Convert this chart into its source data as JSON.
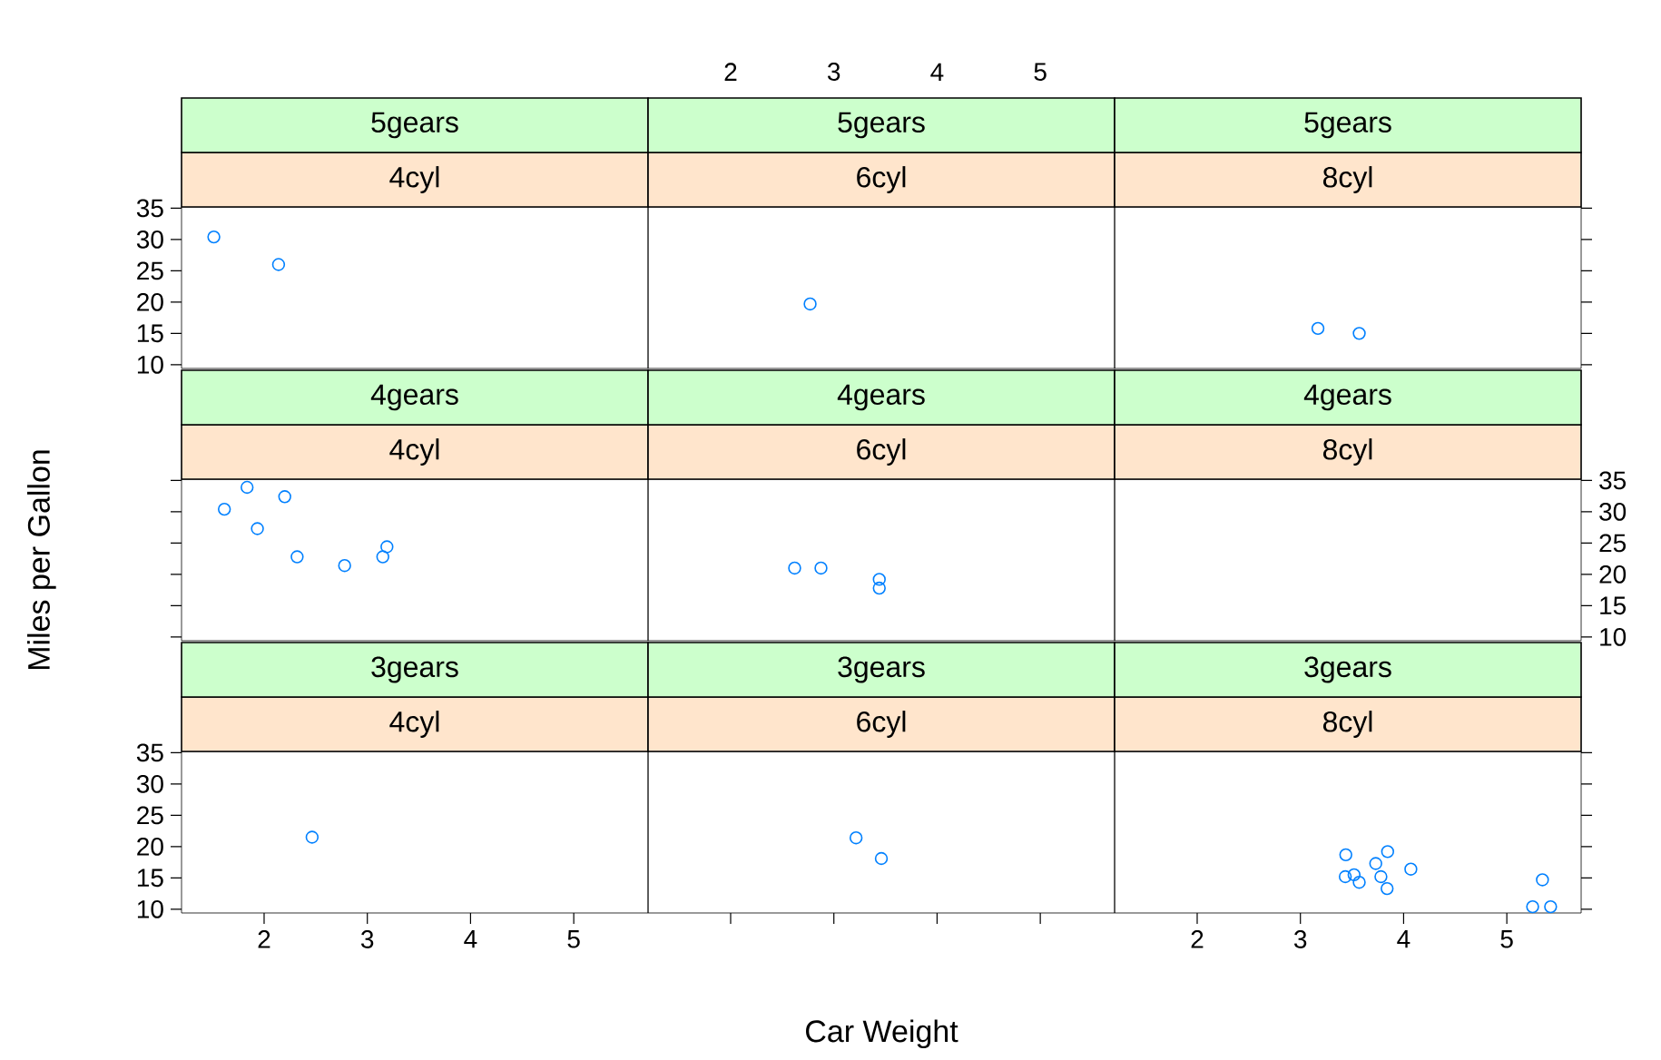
{
  "chart_data": [
    {
      "type": "scatter",
      "title": "5gears",
      "subtitle": "4cyl",
      "xlim": [
        1.2,
        5.72
      ],
      "ylim": [
        9.4,
        35.2
      ],
      "xticks": [
        2,
        3,
        4,
        5
      ],
      "yticks": [
        10,
        15,
        20,
        25,
        30,
        35
      ],
      "tick_labels": "y",
      "marker": "circle",
      "grid": false,
      "series": [
        {
          "color": "#0080ff",
          "x": [
            2.14,
            1.513
          ],
          "values": [
            26.0,
            30.4
          ]
        }
      ]
    },
    {
      "type": "scatter",
      "title": "5gears",
      "subtitle": "6cyl",
      "xlim": [
        1.2,
        5.72
      ],
      "ylim": [
        9.4,
        35.2
      ],
      "xticks": [
        2,
        3,
        4,
        5
      ],
      "yticks": [
        10,
        15,
        20,
        25,
        30,
        35
      ],
      "tick_labels": "x",
      "marker": "circle",
      "grid": false,
      "series": [
        {
          "color": "#0080ff",
          "x": [
            2.77
          ],
          "values": [
            19.7
          ]
        }
      ]
    },
    {
      "type": "scatter",
      "title": "5gears",
      "subtitle": "8cyl",
      "xlim": [
        1.2,
        5.72
      ],
      "ylim": [
        9.4,
        35.2
      ],
      "xticks": [
        2,
        3,
        4,
        5
      ],
      "yticks": [
        10,
        15,
        20,
        25,
        30,
        35
      ],
      "tick_labels": false,
      "marker": "circle",
      "grid": false,
      "series": [
        {
          "color": "#0080ff",
          "x": [
            3.17,
            3.57
          ],
          "values": [
            15.8,
            15.0
          ]
        }
      ]
    },
    {
      "type": "scatter",
      "title": "4gears",
      "subtitle": "4cyl",
      "ylabel": "Miles per Gallon",
      "xlim": [
        1.2,
        5.72
      ],
      "ylim": [
        9.4,
        35.2
      ],
      "xticks": [
        2,
        3,
        4,
        5
      ],
      "yticks": [
        10,
        15,
        20,
        25,
        30,
        35
      ],
      "tick_labels": false,
      "marker": "circle",
      "grid": false,
      "series": [
        {
          "color": "#0080ff",
          "x": [
            2.32,
            3.19,
            3.15,
            2.2,
            1.615,
            1.835,
            1.935,
            2.78
          ],
          "values": [
            22.8,
            24.4,
            22.8,
            32.4,
            30.4,
            33.9,
            27.3,
            21.4
          ]
        }
      ]
    },
    {
      "type": "scatter",
      "title": "4gears",
      "subtitle": "6cyl",
      "xlim": [
        1.2,
        5.72
      ],
      "ylim": [
        9.4,
        35.2
      ],
      "xticks": [
        2,
        3,
        4,
        5
      ],
      "yticks": [
        10,
        15,
        20,
        25,
        30,
        35
      ],
      "tick_labels": false,
      "marker": "circle",
      "grid": false,
      "series": [
        {
          "color": "#0080ff",
          "x": [
            2.62,
            2.875,
            3.44,
            3.44
          ],
          "values": [
            21.0,
            21.0,
            19.2,
            17.8
          ]
        }
      ]
    },
    {
      "type": "scatter",
      "title": "4gears",
      "subtitle": "8cyl",
      "xlim": [
        1.2,
        5.72
      ],
      "ylim": [
        9.4,
        35.2
      ],
      "xticks": [
        2,
        3,
        4,
        5
      ],
      "yticks": [
        10,
        15,
        20,
        25,
        30,
        35
      ],
      "tick_labels": "y",
      "marker": "circle",
      "grid": false
    },
    {
      "type": "scatter",
      "title": "3gears",
      "subtitle": "4cyl",
      "xlim": [
        1.2,
        5.72
      ],
      "ylim": [
        9.4,
        35.2
      ],
      "xticks": [
        2,
        3,
        4,
        5
      ],
      "yticks": [
        10,
        15,
        20,
        25,
        30,
        35
      ],
      "marker": "circle",
      "grid": false,
      "series": [
        {
          "color": "#0080ff",
          "x": [
            2.465
          ],
          "values": [
            21.5
          ]
        }
      ]
    },
    {
      "type": "scatter",
      "title": "3gears",
      "subtitle": "6cyl",
      "xlabel": "Car Weight",
      "xlim": [
        1.2,
        5.72
      ],
      "ylim": [
        9.4,
        35.2
      ],
      "xticks": [
        2,
        3,
        4,
        5
      ],
      "yticks": [
        10,
        15,
        20,
        25,
        30,
        35
      ],
      "tick_labels": false,
      "marker": "circle",
      "grid": false,
      "series": [
        {
          "color": "#0080ff",
          "x": [
            3.215,
            3.46
          ],
          "values": [
            21.4,
            18.1
          ]
        }
      ]
    },
    {
      "type": "scatter",
      "title": "3gears",
      "subtitle": "8cyl",
      "xlim": [
        1.2,
        5.72
      ],
      "ylim": [
        9.4,
        35.2
      ],
      "xticks": [
        2,
        3,
        4,
        5
      ],
      "yticks": [
        10,
        15,
        20,
        25,
        30,
        35
      ],
      "tick_labels": "x",
      "marker": "circle",
      "grid": false,
      "series": [
        {
          "color": "#0080ff",
          "x": [
            3.44,
            3.57,
            4.07,
            3.73,
            3.78,
            5.25,
            5.424,
            5.345,
            3.52,
            3.435,
            3.84,
            3.845
          ],
          "values": [
            18.7,
            14.3,
            16.4,
            17.3,
            15.2,
            10.4,
            10.4,
            14.7,
            15.5,
            15.2,
            13.3,
            19.2
          ]
        }
      ]
    }
  ]
}
